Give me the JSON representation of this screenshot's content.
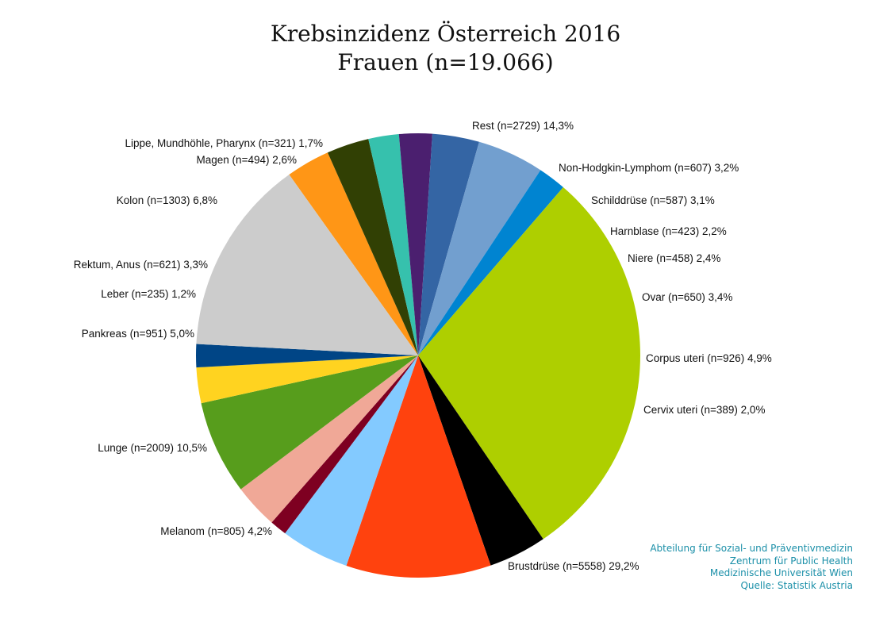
{
  "chart_data": {
    "type": "pie",
    "title": "Krebsinzidenz Österreich 2016",
    "subtitle": "Frauen (n=19.066)",
    "slices": [
      {
        "label": "Non-Hodgkin-Lymphom (n=607) 3,2%",
        "value": 607,
        "color": "#ff9616"
      },
      {
        "label": "Schilddrüse (n=587) 3,1%",
        "value": 587,
        "color": "#314004"
      },
      {
        "label": "Harnblase (n=423) 2,2%",
        "value": 423,
        "color": "#36c1ad"
      },
      {
        "label": "Niere (n=458) 2,4%",
        "value": 458,
        "color": "#4b1f6f"
      },
      {
        "label": "Ovar (n=650) 3,4%",
        "value": 650,
        "color": "#3465a4"
      },
      {
        "label": "Corpus uteri (n=926) 4,9%",
        "value": 926,
        "color": "#729fcf"
      },
      {
        "label": "Cervix uteri (n=389) 2,0%",
        "value": 389,
        "color": "#0084d1"
      },
      {
        "label": "Brustdrüse (n=5558) 29,2%",
        "value": 5558,
        "color": "#aecf00"
      },
      {
        "label": "Melanom (n=805) 4,2%",
        "value": 805,
        "color": "#000000"
      },
      {
        "label": "Lunge (n=2009) 10,5%",
        "value": 2009,
        "color": "#ff420e"
      },
      {
        "label": "Pankreas (n=951) 5,0%",
        "value": 951,
        "color": "#83caff"
      },
      {
        "label": "Leber (n=235) 1,2%",
        "value": 235,
        "color": "#7e0021"
      },
      {
        "label": "Rektum, Anus (n=621) 3,3%",
        "value": 621,
        "color": "#f0a897"
      },
      {
        "label": "Kolon (n=1303) 6,8%",
        "value": 1303,
        "color": "#579d1c"
      },
      {
        "label": "Magen (n=494) 2,6%",
        "value": 494,
        "color": "#ffd320"
      },
      {
        "label": "Lippe, Mundhöhle, Pharynx (n=321) 1,7%",
        "value": 321,
        "color": "#004586"
      },
      {
        "label": "Rest (n=2729) 14,3%",
        "value": 2729,
        "color": "#cccccc"
      }
    ]
  },
  "credits": [
    "Abteilung für Sozial- und Präventivmedizin",
    "Zentrum für Public Health",
    "Medizinische Universität Wien",
    "Quelle: Statistik Austria"
  ]
}
